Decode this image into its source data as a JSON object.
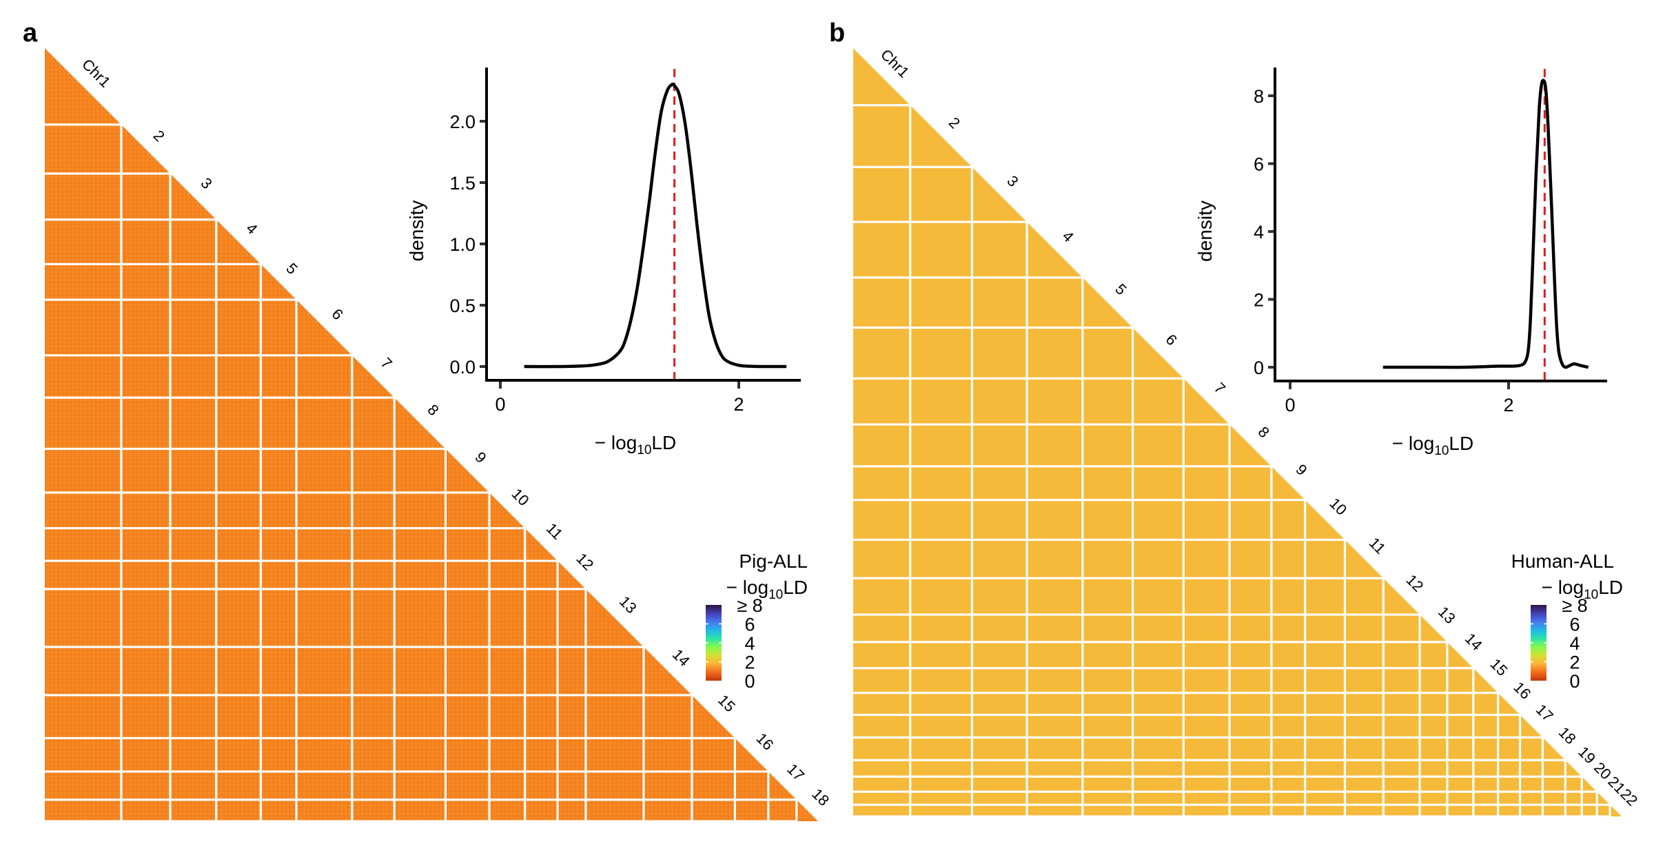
{
  "figure": {
    "panels": [
      "a",
      "b"
    ]
  },
  "chart_data": [
    {
      "id": "a",
      "type": "heatmap",
      "panel_label": "a",
      "title": "Pig-ALL",
      "description": "Lower-triangular genome-wide LD heatmap (-log10 LD) across autosomes",
      "chromosome_labels": [
        "Chr1",
        "2",
        "3",
        "4",
        "5",
        "6",
        "7",
        "8",
        "9",
        "10",
        "11",
        "12",
        "13",
        "14",
        "15",
        "16",
        "17",
        "18"
      ],
      "chromosome_relative_sizes": [
        103,
        66,
        62,
        60,
        48,
        75,
        57,
        69,
        59,
        48,
        44,
        38,
        78,
        65,
        58,
        45,
        38,
        29
      ],
      "cell_color": "#F5841F",
      "cell_value_approx": 1.46,
      "grid_color": "#FFF8EE",
      "legend": {
        "title": "Pig-ALL",
        "subtitle": "− log10LD",
        "subtitle_main": "− log",
        "subtitle_sub": "10",
        "subtitle_tail": "LD",
        "colormap": "turbo",
        "range": [
          0,
          8
        ],
        "ticks": [
          0,
          2,
          4,
          6,
          8
        ],
        "tick_labels": [
          "0",
          "2",
          "4",
          "6",
          "≥ 8"
        ],
        "colors": [
          "#C0390B",
          "#F36B1C",
          "#FBB438",
          "#D4E034",
          "#86F94C",
          "#2CE4A6",
          "#22B7E6",
          "#4777EF",
          "#4240B6",
          "#30123B"
        ]
      },
      "inset": {
        "type": "line",
        "title": "",
        "xlabel_main": "− log",
        "xlabel_sub": "10",
        "xlabel_tail": "LD",
        "ylabel": "density",
        "xlim": [
          -0.12,
          2.5
        ],
        "ylim": [
          -0.12,
          2.42
        ],
        "xticks": [
          0,
          2
        ],
        "xtick_labels": [
          "0",
          "2"
        ],
        "yticks": [
          0.0,
          0.5,
          1.0,
          1.5,
          2.0
        ],
        "ytick_labels": [
          "0.0",
          "0.5",
          "1.0",
          "1.5",
          "2.0"
        ],
        "mean_line": {
          "x": 1.46,
          "color": "#E41A1C",
          "style": "dashed"
        },
        "curve_color": "#000000",
        "series": [
          {
            "name": "density",
            "x": [
              0.2,
              0.5,
              0.7,
              0.8,
              0.9,
              1.0,
              1.05,
              1.1,
              1.15,
              1.2,
              1.25,
              1.3,
              1.35,
              1.4,
              1.44,
              1.46,
              1.5,
              1.55,
              1.6,
              1.65,
              1.7,
              1.75,
              1.8,
              1.85,
              1.9,
              2.0,
              2.1,
              2.2,
              2.4
            ],
            "y": [
              0.0,
              0.0,
              0.005,
              0.015,
              0.04,
              0.12,
              0.22,
              0.4,
              0.65,
              0.98,
              1.35,
              1.75,
              2.08,
              2.25,
              2.3,
              2.29,
              2.22,
              1.98,
              1.6,
              1.15,
              0.75,
              0.42,
              0.22,
              0.1,
              0.045,
              0.01,
              0.002,
              0.0,
              0.0
            ]
          }
        ]
      }
    },
    {
      "id": "b",
      "type": "heatmap",
      "panel_label": "b",
      "title": "Human-ALL",
      "description": "Lower-triangular genome-wide LD heatmap (-log10 LD) across autosomes",
      "chromosome_labels": [
        "Chr1",
        "2",
        "3",
        "4",
        "5",
        "6",
        "7",
        "8",
        "9",
        "10",
        "11",
        "12",
        "13",
        "14",
        "15",
        "16",
        "17",
        "18",
        "19",
        "20",
        "21",
        "22"
      ],
      "chromosome_relative_sizes": [
        83,
        90,
        80,
        81,
        73,
        74,
        67,
        61,
        49,
        58,
        56,
        53,
        40,
        38,
        36,
        32,
        33,
        33,
        24,
        22,
        19,
        17
      ],
      "cell_color": "#F6BA3A",
      "cell_value_approx": 2.32,
      "grid_color": "#FFFFFF",
      "legend": {
        "title": "Human-ALL",
        "subtitle": "− log10LD",
        "subtitle_main": "− log",
        "subtitle_sub": "10",
        "subtitle_tail": "LD",
        "colormap": "turbo",
        "range": [
          0,
          8
        ],
        "ticks": [
          0,
          2,
          4,
          6,
          8
        ],
        "tick_labels": [
          "0",
          "2",
          "4",
          "6",
          "≥ 8"
        ],
        "colors": [
          "#C0390B",
          "#F36B1C",
          "#FBB438",
          "#D4E034",
          "#86F94C",
          "#2CE4A6",
          "#22B7E6",
          "#4777EF",
          "#4240B6",
          "#30123B"
        ]
      },
      "inset": {
        "type": "line",
        "title": "",
        "xlabel_main": "− log",
        "xlabel_sub": "10",
        "xlabel_tail": "LD",
        "ylabel": "density",
        "xlim": [
          -0.14,
          2.95
        ],
        "ylim": [
          -0.45,
          8.8
        ],
        "xticks": [
          0,
          2
        ],
        "xtick_labels": [
          "0",
          "2"
        ],
        "yticks": [
          0,
          2,
          4,
          6,
          8
        ],
        "ytick_labels": [
          "0",
          "2",
          "4",
          "6",
          "8"
        ],
        "mean_line": {
          "x": 2.33,
          "color": "#E41A1C",
          "style": "dashed"
        },
        "curve_color": "#000000",
        "series": [
          {
            "name": "density",
            "x": [
              0.85,
              1.2,
              1.6,
              1.9,
              2.0,
              2.1,
              2.15,
              2.18,
              2.2,
              2.22,
              2.25,
              2.28,
              2.3,
              2.32,
              2.34,
              2.36,
              2.39,
              2.42,
              2.44,
              2.46,
              2.49,
              2.52,
              2.56,
              2.6,
              2.66,
              2.73
            ],
            "y": [
              0.0,
              0.0,
              0.0,
              0.03,
              0.03,
              0.05,
              0.15,
              0.5,
              1.4,
              3.0,
              5.6,
              7.6,
              8.3,
              8.45,
              8.2,
              7.2,
              5.0,
              2.6,
              1.2,
              0.45,
              0.1,
              0.0,
              0.05,
              0.1,
              0.05,
              0.0
            ]
          }
        ]
      }
    }
  ]
}
